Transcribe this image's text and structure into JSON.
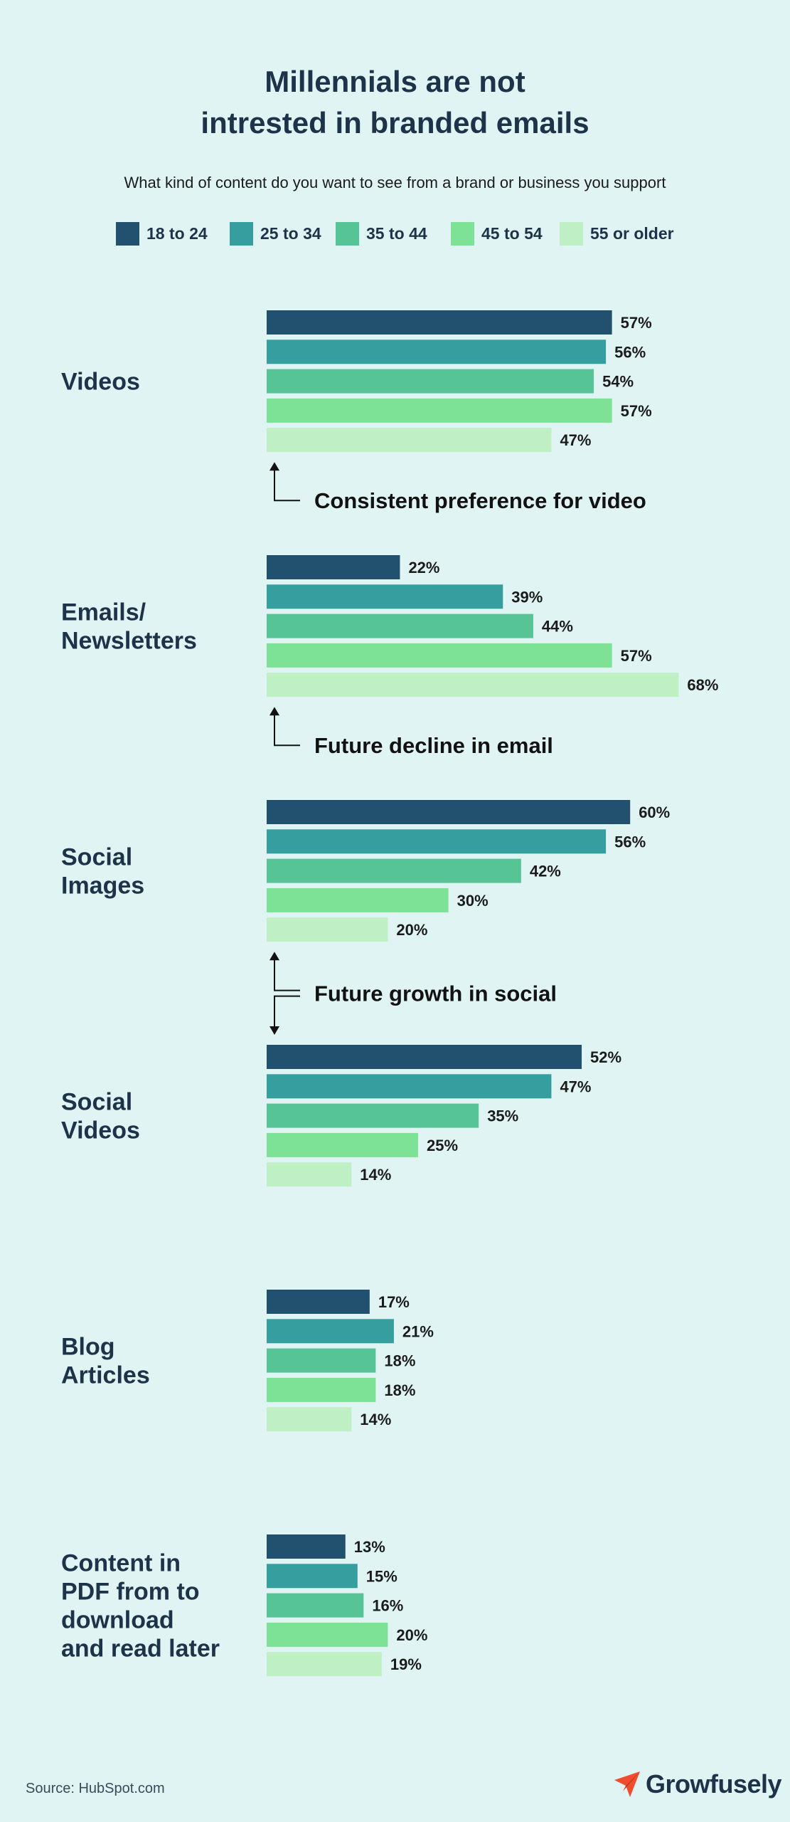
{
  "title_line1": "Millennials are not",
  "title_line2": "intrested in branded emails",
  "subtitle": "What kind of content do you want to see from a brand or business you support",
  "source": "Source: HubSpot.com",
  "brand": "Growfusely",
  "brand_icon": "paper-plane-icon",
  "colors": {
    "background": "#e0f4f4",
    "series": [
      "#22506f",
      "#369e9e",
      "#56c495",
      "#7ee296",
      "#bff0c4"
    ],
    "brand_accent": "#f04d2e"
  },
  "annotations": [
    {
      "text": "Consistent preference for video",
      "arrows": "up"
    },
    {
      "text": "Future decline in email",
      "arrows": "up"
    },
    {
      "text": "Future growth in social",
      "arrows": "up-down"
    }
  ],
  "chart_data": {
    "type": "bar",
    "orientation": "horizontal",
    "unit": "%",
    "grid": false,
    "legend_position": "top",
    "categories": [
      [
        "Videos"
      ],
      [
        "Emails/",
        "Newsletters"
      ],
      [
        "Social",
        "Images"
      ],
      [
        "Social",
        "Videos"
      ],
      [
        "Blog",
        "Articles"
      ],
      [
        "Content in",
        "PDF from to",
        "download",
        "and read later"
      ]
    ],
    "series": [
      {
        "name": "18 to 24",
        "values": [
          57,
          22,
          60,
          52,
          17,
          13
        ]
      },
      {
        "name": "25 to 34",
        "values": [
          56,
          39,
          56,
          47,
          21,
          15
        ]
      },
      {
        "name": "35 to 44",
        "values": [
          54,
          44,
          42,
          35,
          18,
          16
        ]
      },
      {
        "name": "45 to 54",
        "values": [
          57,
          57,
          30,
          25,
          18,
          20
        ]
      },
      {
        "name": "55 or older",
        "values": [
          47,
          68,
          20,
          14,
          14,
          19
        ]
      }
    ]
  }
}
